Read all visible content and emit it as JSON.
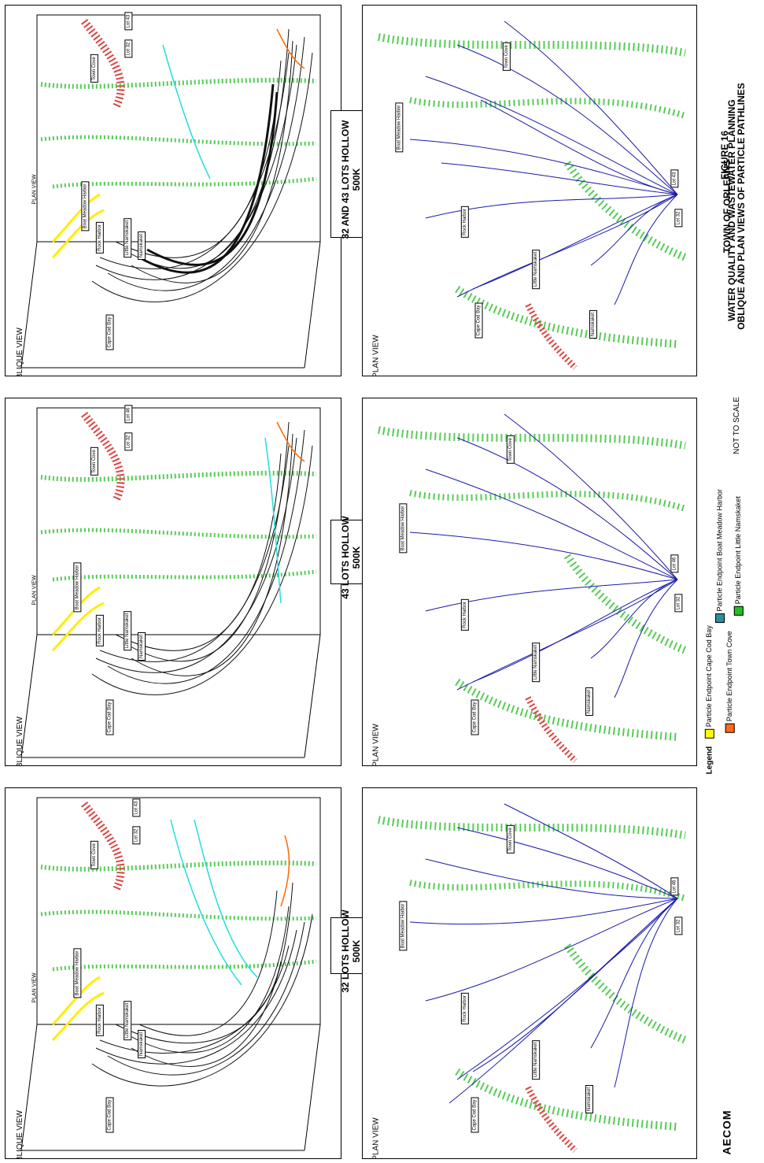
{
  "oblique_view": "OBLIQUE VIEW",
  "plan_view": "PLAN VIEW",
  "plan_view_small": "PLAN VIEW",
  "labels": {
    "cape_cod_bay": "Cape Cod Bay",
    "rock_harbor": "Rock Harbor",
    "little_namskaket": "Little Namskaket",
    "namskaket": "Namskaket",
    "boat_meadow": "Boat Meadow Harbor",
    "town_cove": "Town Cove",
    "lot_32": "Lot 32",
    "lot_43": "Lot 43",
    "lot_46": "Lot 46"
  },
  "columns": [
    {
      "title_line1": "32 LOTS HOLLOW",
      "title_line2": "500K"
    },
    {
      "title_line1": "43 LOTS HOLLOW",
      "title_line2": "500K"
    },
    {
      "title_line1": "32 AND 43 LOTS HOLLOW",
      "title_line2": "500K"
    }
  ],
  "legend": {
    "title": "Legend",
    "items": [
      {
        "label": "Particle Endpoint Cape Cod Bay",
        "color": "#ffff00"
      },
      {
        "label": "Particle Endpoint Town Cove",
        "color": "#ff6a1a"
      },
      {
        "label": "Particle Endpoint Boat Meadow Harbor",
        "color": "#2a8fa0"
      },
      {
        "label": "Particle Endpoint Little Namskaket",
        "color": "#22c022"
      }
    ]
  },
  "not_to_scale": "NOT TO SCALE",
  "figure": {
    "number": "FIGURE 16",
    "line1": "TOWN OF ORLEANS",
    "line2": "WATER QUALITY AND WASTEWATER PLANNING",
    "line3": "OBLIQUE AND PLAN VIEWS OF PARTICLE PATHLINES"
  },
  "logo": "AECOM",
  "colors": {
    "pathline": "#111111",
    "plan_pathline": "#1a1aa8",
    "green_dots": "#55cc55",
    "red_dots": "#dd4444",
    "yellow": "#ffee00",
    "cyan": "#22dddd",
    "orange": "#ff6600"
  }
}
